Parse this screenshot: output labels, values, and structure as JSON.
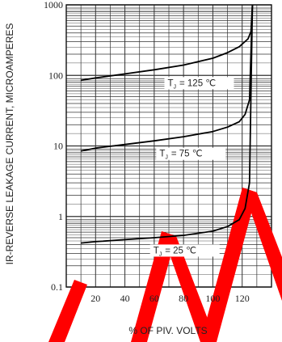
{
  "chart_data": {
    "type": "line",
    "xlabel": "% OF PIV. VOLTS",
    "ylabel": "IR-REVERSE LEAKAGE CURRENT, MICROAMPERES",
    "xlim": [
      0,
      140
    ],
    "ylim": [
      0.1,
      1000
    ],
    "yscale": "log",
    "grid": true,
    "xticks": [
      "20",
      "40",
      "60",
      "80",
      "100",
      "120"
    ],
    "yticks": [
      "0.1",
      "1",
      "10",
      "100",
      "1000"
    ],
    "series": [
      {
        "name": "TJ = 125 ℃",
        "x": [
          10,
          20,
          40,
          60,
          80,
          100,
          110,
          118,
          124,
          126,
          127
        ],
        "y": [
          85,
          92,
          105,
          120,
          140,
          175,
          210,
          255,
          330,
          420,
          1000
        ]
      },
      {
        "name": "TJ = 75 ℃",
        "x": [
          10,
          20,
          40,
          60,
          80,
          100,
          110,
          118,
          122,
          125,
          127
        ],
        "y": [
          8.5,
          9.3,
          10.5,
          11.8,
          13.5,
          16,
          18.5,
          22,
          28,
          45,
          1000
        ]
      },
      {
        "name": "TJ = 25 ℃",
        "x": [
          10,
          20,
          40,
          60,
          80,
          100,
          110,
          118,
          122,
          125,
          127
        ],
        "y": [
          0.42,
          0.44,
          0.47,
          0.5,
          0.54,
          0.62,
          0.72,
          0.9,
          1.3,
          3,
          1000
        ]
      }
    ],
    "annotations": [
      {
        "prefix": "T",
        "sub": "J",
        "text": "= 125 ℃",
        "series": 0
      },
      {
        "prefix": "T",
        "sub": "J",
        "text": "= 75 ℃",
        "series": 1
      },
      {
        "prefix": "T",
        "sub": "J",
        "text": "= 25 ℃",
        "series": 2
      }
    ]
  }
}
